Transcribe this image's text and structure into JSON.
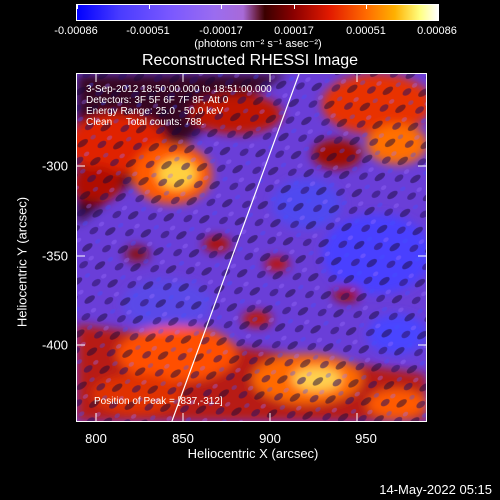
{
  "colorbar": {
    "tick_labels": [
      "-0.00086",
      "-0.00051",
      "-0.00017",
      "0.00017",
      "0.00051",
      "0.00086"
    ],
    "unit": "(photons cm⁻² s⁻¹ asec⁻²)"
  },
  "title": "Reconstructed RHESSI Image",
  "info": {
    "line1": "3-Sep-2012 18:50:00.000 to 18:51:00.000",
    "line2": "Detectors: 3F 5F 6F 7F 8F, Att 0",
    "line3": "Energy Range: 25.0 - 50.0 keV",
    "line4": "Clean     Total counts: 788."
  },
  "peak_label": "Position of Peak = [837,-312]",
  "axes": {
    "xlabel": "Heliocentric X (arcsec)",
    "ylabel": "Heliocentric Y (arcsec)",
    "xticks": [
      "800",
      "850",
      "900",
      "950"
    ],
    "yticks": [
      "-300",
      "-350",
      "-400"
    ]
  },
  "timestamp": "14-May-2022 05:15",
  "colors": {
    "background": "#000000",
    "limb_line": "#ffffff",
    "negative": "#6a40e0",
    "positive": "#ff3000"
  }
}
